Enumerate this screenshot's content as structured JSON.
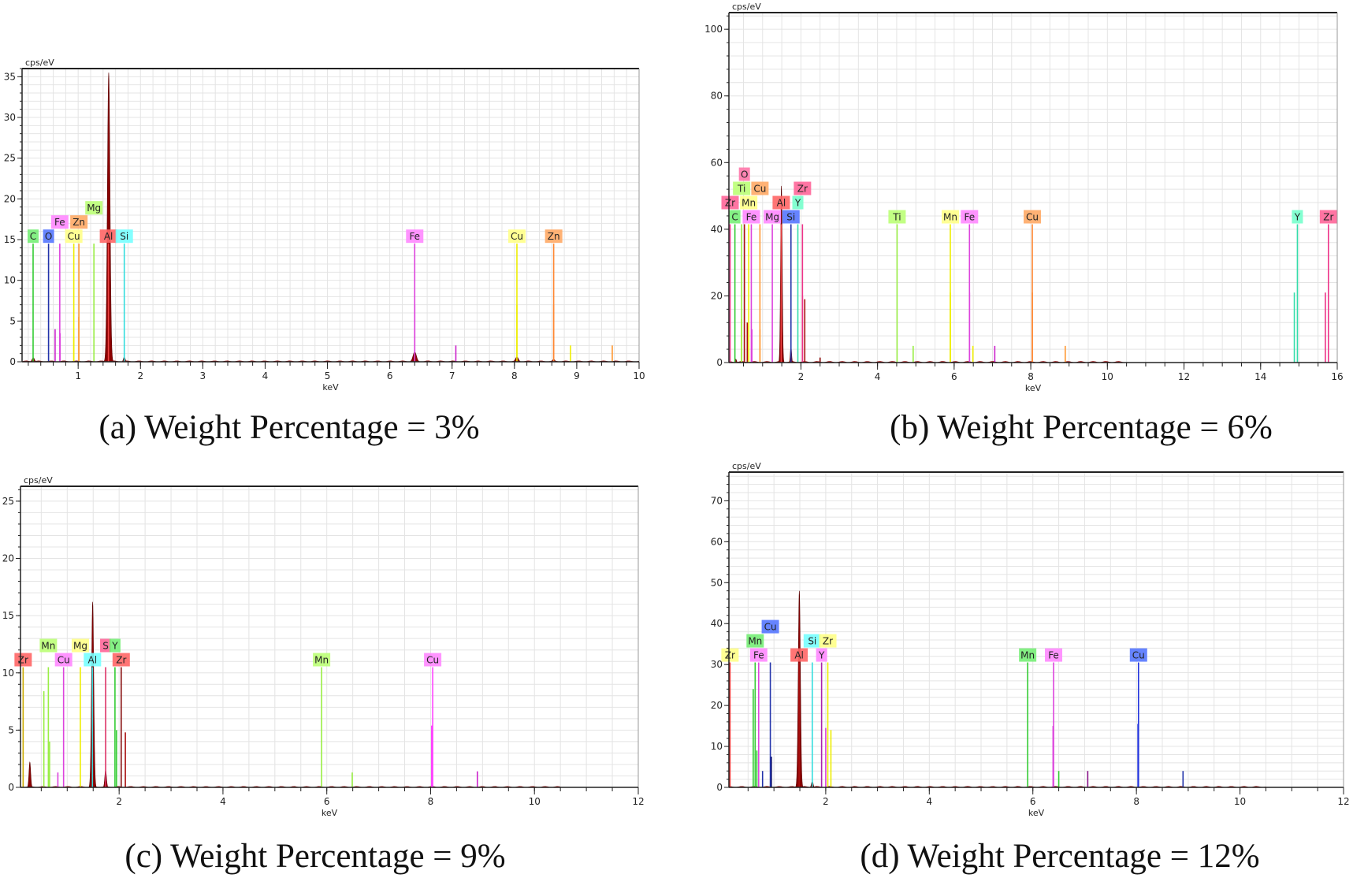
{
  "chart_data": [
    {
      "type": "line",
      "title": "(a) Weight Percentage = 3%",
      "ylabel": "cps/eV",
      "xlabel": "keV",
      "xlim": [
        0.1,
        10
      ],
      "ylim": [
        0,
        36
      ],
      "xticks": [
        1,
        2,
        3,
        4,
        5,
        6,
        7,
        8,
        9,
        10
      ],
      "yticks": [
        0,
        5,
        10,
        15,
        20,
        25,
        30,
        35
      ],
      "marker_height": 14.5,
      "peaks": [
        {
          "e": 1.49,
          "h": 35.5,
          "w": 0.045
        },
        {
          "e": 6.4,
          "h": 1.2,
          "w": 0.06
        },
        {
          "e": 8.04,
          "h": 0.6,
          "w": 0.05
        },
        {
          "e": 0.28,
          "h": 0.5,
          "w": 0.04
        },
        {
          "e": 1.74,
          "h": 0.6,
          "w": 0.03
        },
        {
          "e": 8.63,
          "h": 0.3,
          "w": 0.04
        }
      ],
      "spikes": [
        {
          "e": 0.63,
          "h": 4,
          "color": "#cc22cc"
        },
        {
          "e": 0.71,
          "h": 3.5,
          "color": "#dd44dd"
        },
        {
          "e": 0.93,
          "h": 3,
          "color": "#eeee00"
        },
        {
          "e": 1.01,
          "h": 5.5,
          "color": "#ff9933"
        },
        {
          "e": 6.4,
          "h": 7,
          "color": "#dd44dd"
        },
        {
          "e": 7.06,
          "h": 2,
          "color": "#cc22cc"
        },
        {
          "e": 8.04,
          "h": 7,
          "color": "#eeee00"
        },
        {
          "e": 8.63,
          "h": 7,
          "color": "#ff8833"
        },
        {
          "e": 8.9,
          "h": 2,
          "color": "#eeee00"
        },
        {
          "e": 9.57,
          "h": 2,
          "color": "#ff9933"
        }
      ],
      "markers": [
        {
          "el": "C",
          "e": 0.277,
          "row": 0,
          "line": "#33cc33",
          "bg": "#77ee77"
        },
        {
          "el": "O",
          "e": 0.525,
          "row": 0,
          "line": "#2233aa",
          "bg": "#5577ff"
        },
        {
          "el": "Fe",
          "e": 0.705,
          "row": 1,
          "line": "#dd44dd",
          "bg": "#ff88ff"
        },
        {
          "el": "Cu",
          "e": 0.93,
          "row": 0,
          "line": "#eeee00",
          "bg": "#ffff88"
        },
        {
          "el": "Zn",
          "e": 1.012,
          "row": 1,
          "line": "#ff9933",
          "bg": "#ffaa66"
        },
        {
          "el": "Mg",
          "e": 1.253,
          "row": 2,
          "line": "#99ee44",
          "bg": "#bbff77"
        },
        {
          "el": "Al",
          "e": 1.486,
          "row": 0,
          "line": "#ee4444",
          "bg": "#ff6666"
        },
        {
          "el": "Si",
          "e": 1.74,
          "row": 0,
          "line": "#33dddd",
          "bg": "#77ffff"
        },
        {
          "el": "Fe",
          "e": 6.4,
          "row": 0,
          "line": "#dd44dd",
          "bg": "#ff88ff"
        },
        {
          "el": "Cu",
          "e": 8.04,
          "row": 0,
          "line": "#eeee00",
          "bg": "#ffff88"
        },
        {
          "el": "Zn",
          "e": 8.63,
          "row": 0,
          "line": "#ff8833",
          "bg": "#ffaa66"
        }
      ]
    },
    {
      "type": "line",
      "title": "(b) Weight Percentage = 6%",
      "ylabel": "cps/eV",
      "xlabel": "keV",
      "xlim": [
        0.12,
        16
      ],
      "ylim": [
        0,
        105
      ],
      "xticks": [
        2,
        4,
        6,
        8,
        10,
        12,
        14,
        16
      ],
      "yticks": [
        0,
        20,
        40,
        60,
        80,
        100
      ],
      "marker_height": 41.5,
      "peaks": [
        {
          "e": 1.49,
          "h": 53,
          "w": 0.045
        },
        {
          "e": 1.74,
          "h": 5,
          "w": 0.035
        },
        {
          "e": 0.3,
          "h": 1,
          "w": 0.04
        }
      ],
      "spikes": [
        {
          "e": 0.45,
          "h": 13,
          "color": "#eeee00"
        },
        {
          "e": 0.6,
          "h": 12,
          "color": "#aa1111"
        },
        {
          "e": 0.72,
          "h": 10,
          "color": "#dd44dd"
        },
        {
          "e": 0.93,
          "h": 10,
          "color": "#ff9933"
        },
        {
          "e": 2.04,
          "h": 20,
          "color": "#ee3388"
        },
        {
          "e": 2.1,
          "h": 19,
          "color": "#aa1111"
        },
        {
          "e": 2.5,
          "h": 1.5,
          "color": "#880000"
        },
        {
          "e": 4.93,
          "h": 5,
          "color": "#99ee44"
        },
        {
          "e": 5.9,
          "h": 21,
          "color": "#eeee00"
        },
        {
          "e": 6.4,
          "h": 21,
          "color": "#dd44dd"
        },
        {
          "e": 6.49,
          "h": 5,
          "color": "#eeee00"
        },
        {
          "e": 7.06,
          "h": 5,
          "color": "#cc22cc"
        },
        {
          "e": 8.04,
          "h": 21,
          "color": "#ff8833"
        },
        {
          "e": 8.9,
          "h": 5,
          "color": "#ff9933"
        },
        {
          "e": 14.88,
          "h": 21,
          "color": "#33ddaa"
        },
        {
          "e": 15.69,
          "h": 21,
          "color": "#ee3388"
        }
      ],
      "markers": [
        {
          "el": "Zr",
          "e": 0.151,
          "row": 1,
          "line": "#ee3388",
          "bg": "#ff6699"
        },
        {
          "el": "C",
          "e": 0.277,
          "row": 0,
          "line": "#33cc33",
          "bg": "#77ee77"
        },
        {
          "el": "Ti",
          "e": 0.452,
          "row": 2,
          "line": "#99ee44",
          "bg": "#bbff77"
        },
        {
          "el": "O",
          "e": 0.525,
          "row": 3,
          "line": "#aa1111",
          "bg": "#ff77aa"
        },
        {
          "el": "Mn",
          "e": 0.637,
          "row": 1,
          "line": "#eeee00",
          "bg": "#ffff88"
        },
        {
          "el": "Fe",
          "e": 0.705,
          "row": 0,
          "line": "#dd44dd",
          "bg": "#ff88ff"
        },
        {
          "el": "Cu",
          "e": 0.93,
          "row": 2,
          "line": "#ff9933",
          "bg": "#ffaa66"
        },
        {
          "el": "Mg",
          "e": 1.253,
          "row": 0,
          "line": "#dd44dd",
          "bg": "#ff88ff"
        },
        {
          "el": "Al",
          "e": 1.486,
          "row": 1,
          "line": "#ee4444",
          "bg": "#ff6666"
        },
        {
          "el": "Si",
          "e": 1.74,
          "row": 0,
          "line": "#2233aa",
          "bg": "#5577ff"
        },
        {
          "el": "Y",
          "e": 1.92,
          "row": 1,
          "line": "#33ddaa",
          "bg": "#77ffcc"
        },
        {
          "el": "Zr",
          "e": 2.04,
          "row": 2,
          "line": "#ee3388",
          "bg": "#ff6699"
        },
        {
          "el": "Ti",
          "e": 4.51,
          "row": 0,
          "line": "#99ee44",
          "bg": "#bbff77"
        },
        {
          "el": "Mn",
          "e": 5.9,
          "row": 0,
          "line": "#eeee00",
          "bg": "#ffff88"
        },
        {
          "el": "Fe",
          "e": 6.4,
          "row": 0,
          "line": "#dd44dd",
          "bg": "#ff88ff"
        },
        {
          "el": "Cu",
          "e": 8.04,
          "row": 0,
          "line": "#ff8833",
          "bg": "#ffaa66"
        },
        {
          "el": "Y",
          "e": 14.96,
          "row": 0,
          "line": "#33ddaa",
          "bg": "#77ffcc"
        },
        {
          "el": "Zr",
          "e": 15.77,
          "row": 0,
          "line": "#ee3388",
          "bg": "#ff6699"
        }
      ]
    },
    {
      "type": "line",
      "title": "(c) Weight Percentage = 9%",
      "ylabel": "cps/eV",
      "xlabel": "keV",
      "xlim": [
        0.1,
        12
      ],
      "ylim": [
        0,
        26.3
      ],
      "xticks": [
        2,
        4,
        6,
        8,
        10,
        12
      ],
      "yticks": [
        0,
        5,
        10,
        15,
        20,
        25
      ],
      "marker_height": 10.5,
      "peaks": [
        {
          "e": 1.49,
          "h": 16.2,
          "w": 0.045
        },
        {
          "e": 0.28,
          "h": 2.2,
          "w": 0.035
        },
        {
          "e": 1.74,
          "h": 1.5,
          "w": 0.035
        }
      ],
      "spikes": [
        {
          "e": 0.55,
          "h": 8.4,
          "color": "#99ee44"
        },
        {
          "e": 0.66,
          "h": 4,
          "color": "#99ee44"
        },
        {
          "e": 0.82,
          "h": 1.3,
          "color": "#dd44dd"
        },
        {
          "e": 1.95,
          "h": 5,
          "color": "#33cc33"
        },
        {
          "e": 2.12,
          "h": 4.8,
          "color": "#aa1111"
        },
        {
          "e": 6.49,
          "h": 1.3,
          "color": "#99ee44"
        },
        {
          "e": 8.02,
          "h": 5.4,
          "color": "#ff44ff"
        },
        {
          "e": 8.9,
          "h": 1.4,
          "color": "#cc22cc"
        }
      ],
      "markers": [
        {
          "el": "Zr",
          "e": 0.151,
          "row": 0,
          "line": "#ccaa00",
          "bg": "#ff6666"
        },
        {
          "el": "Mn",
          "e": 0.637,
          "row": 1,
          "line": "#99ee44",
          "bg": "#bbff77"
        },
        {
          "el": "Cu",
          "e": 0.93,
          "row": 0,
          "line": "#dd44dd",
          "bg": "#ff88ff"
        },
        {
          "el": "Mg",
          "e": 1.253,
          "row": 1,
          "line": "#eeee00",
          "bg": "#ffff88"
        },
        {
          "el": "Al",
          "e": 1.486,
          "row": 0,
          "line": "#33dddd",
          "bg": "#77ffff"
        },
        {
          "el": "S",
          "e": 1.74,
          "row": 1,
          "line": "#dd3366",
          "bg": "#ff6699"
        },
        {
          "el": "Y",
          "e": 1.92,
          "row": 1,
          "line": "#33cc33",
          "bg": "#77ee77"
        },
        {
          "el": "Zr",
          "e": 2.04,
          "row": 0,
          "line": "#881111",
          "bg": "#ff6666"
        },
        {
          "el": "Mn",
          "e": 5.9,
          "row": 0,
          "line": "#99ee44",
          "bg": "#bbff77"
        },
        {
          "el": "Cu",
          "e": 8.04,
          "row": 0,
          "line": "#ff44ff",
          "bg": "#ff88ff"
        }
      ]
    },
    {
      "type": "line",
      "title": "(d) Weight Percentage = 12%",
      "ylabel": "cps/eV",
      "xlabel": "keV",
      "xlim": [
        0.13,
        12
      ],
      "ylim": [
        0,
        77
      ],
      "xticks": [
        2,
        4,
        6,
        8,
        10,
        12
      ],
      "yticks": [
        0,
        10,
        20,
        30,
        40,
        50,
        60,
        70
      ],
      "marker_height": 30.5,
      "peaks": [
        {
          "e": 1.49,
          "h": 48,
          "w": 0.045
        },
        {
          "e": 1.74,
          "h": 1.5,
          "w": 0.035
        }
      ],
      "spikes": [
        {
          "e": 0.6,
          "h": 24,
          "color": "#33cc33"
        },
        {
          "e": 0.67,
          "h": 9,
          "color": "#33cc33"
        },
        {
          "e": 0.78,
          "h": 4,
          "color": "#2233aa"
        },
        {
          "e": 0.95,
          "h": 7.5,
          "color": "#111166"
        },
        {
          "e": 2.0,
          "h": 14.5,
          "color": "#dd44dd"
        },
        {
          "e": 2.1,
          "h": 14,
          "color": "#eeee00"
        },
        {
          "e": 6.39,
          "h": 15,
          "color": "#dd44dd"
        },
        {
          "e": 6.5,
          "h": 4,
          "color": "#33cc33"
        },
        {
          "e": 7.06,
          "h": 4,
          "color": "#881188"
        },
        {
          "e": 8.03,
          "h": 15.5,
          "color": "#2233dd"
        },
        {
          "e": 8.9,
          "h": 4,
          "color": "#2233aa"
        }
      ],
      "markers": [
        {
          "el": "Zr",
          "e": 0.151,
          "row": 0,
          "line": "#ee3333",
          "bg": "#ffff88"
        },
        {
          "el": "Mn",
          "e": 0.637,
          "row": 1,
          "line": "#33cc33",
          "bg": "#77ee77"
        },
        {
          "el": "Fe",
          "e": 0.705,
          "row": 0,
          "line": "#dd44dd",
          "bg": "#ff88ff"
        },
        {
          "el": "Cu",
          "e": 0.93,
          "row": 2,
          "line": "#2233aa",
          "bg": "#5577ff"
        },
        {
          "el": "Al",
          "e": 1.486,
          "row": 0,
          "line": "#aa1111",
          "bg": "#ff6666"
        },
        {
          "el": "Si",
          "e": 1.74,
          "row": 1,
          "line": "#33dddd",
          "bg": "#77ffff"
        },
        {
          "el": "Y",
          "e": 1.92,
          "row": 0,
          "line": "#aa22aa",
          "bg": "#ff88ff"
        },
        {
          "el": "Zr",
          "e": 2.04,
          "row": 1,
          "line": "#eeee00",
          "bg": "#ffff88"
        },
        {
          "el": "Mn",
          "e": 5.9,
          "row": 0,
          "line": "#33cc33",
          "bg": "#77ee77"
        },
        {
          "el": "Fe",
          "e": 6.4,
          "row": 0,
          "line": "#dd44dd",
          "bg": "#ff88ff"
        },
        {
          "el": "Cu",
          "e": 8.04,
          "row": 0,
          "line": "#2233dd",
          "bg": "#5577ff"
        }
      ]
    }
  ],
  "colors": {
    "spectrum": "#8b0000",
    "grid": "#e4e4e4",
    "axis": "#222222"
  }
}
